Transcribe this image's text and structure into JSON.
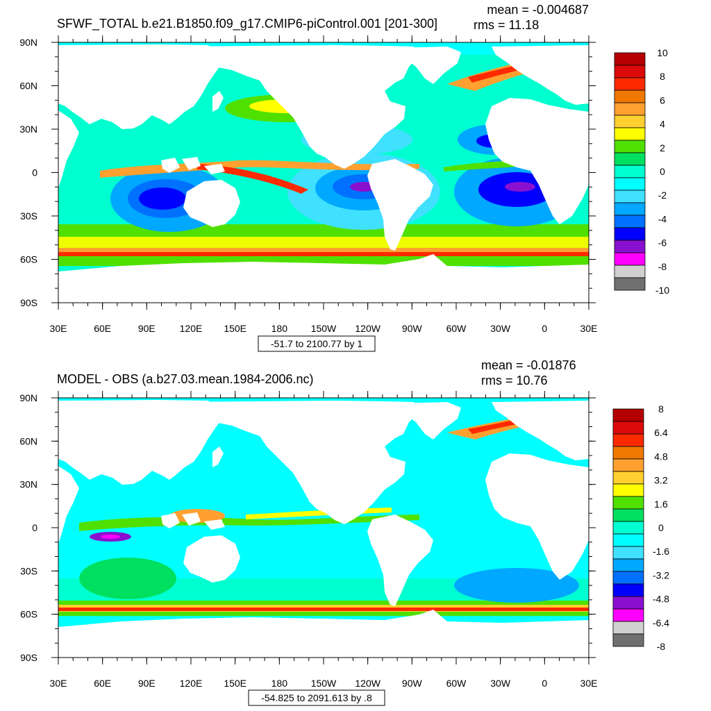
{
  "panels": [
    {
      "title": "SFWF_TOTAL b.e21.B1850.f09_g17.CMIP6-piControl.001 [201-300]",
      "mean_label": "mean = -0.004687",
      "rms_label": "rms = 11.18",
      "range_label": "-51.7 to 2100.77 by 1",
      "colorbar_labels": [
        "10",
        "8",
        "6",
        "4",
        "2",
        "0",
        "-2",
        "-4",
        "-6",
        "-8",
        "-10"
      ],
      "colorbar_colors": [
        "#b40000",
        "#dc0a0a",
        "#ff2a00",
        "#f07800",
        "#ffa030",
        "#ffd030",
        "#ffff00",
        "#50e000",
        "#00e060",
        "#00ffd0",
        "#00ffff",
        "#40e0ff",
        "#00a8ff",
        "#0070ff",
        "#0000ff",
        "#8a10d0",
        "#ff00ff",
        "#d0d0d0",
        "#707070"
      ]
    },
    {
      "title": "MODEL - OBS (a.b27.03.mean.1984-2006.nc)",
      "mean_label": "mean = -0.01876",
      "rms_label": "rms = 10.76",
      "range_label": "-54.825 to 2091.613 by .8",
      "colorbar_labels": [
        "8",
        "6.4",
        "4.8",
        "3.2",
        "1.6",
        "0",
        "-1.6",
        "-3.2",
        "-4.8",
        "-6.4",
        "-8"
      ],
      "colorbar_colors": [
        "#b40000",
        "#dc0a0a",
        "#ff2a00",
        "#f07800",
        "#ffa030",
        "#ffd030",
        "#ffff00",
        "#50e000",
        "#00e060",
        "#00ffd0",
        "#00ffff",
        "#40e0ff",
        "#00a8ff",
        "#0070ff",
        "#0000ff",
        "#8a10d0",
        "#ff00ff",
        "#d0d0d0",
        "#707070"
      ]
    }
  ],
  "axes": {
    "lat_labels": [
      "90N",
      "60N",
      "30N",
      "0",
      "30S",
      "60S",
      "90S"
    ],
    "lon_labels": [
      "30E",
      "60E",
      "90E",
      "120E",
      "150E",
      "180",
      "150W",
      "120W",
      "90W",
      "60W",
      "30W",
      "0",
      "30E"
    ]
  },
  "colors": {
    "ocean_base": "#00ffd0",
    "land": "#ffffff"
  }
}
